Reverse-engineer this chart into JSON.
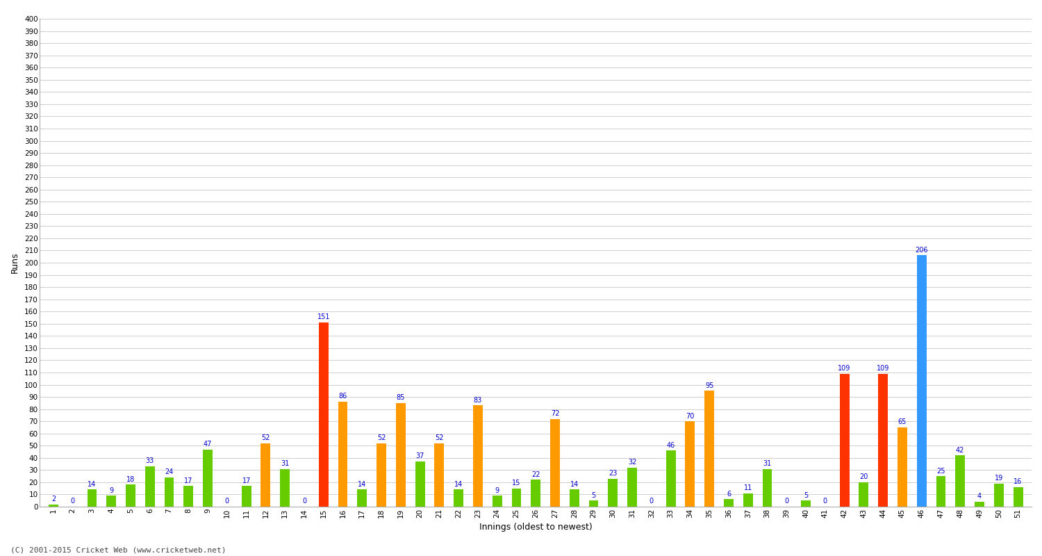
{
  "xlabel": "Innings (oldest to newest)",
  "ylabel": "Runs",
  "ylim": [
    0,
    400
  ],
  "yticks": [
    0,
    10,
    20,
    30,
    40,
    50,
    60,
    70,
    80,
    90,
    100,
    110,
    120,
    130,
    140,
    150,
    160,
    170,
    180,
    190,
    200,
    210,
    220,
    230,
    240,
    250,
    260,
    270,
    280,
    290,
    300,
    310,
    320,
    330,
    340,
    350,
    360,
    370,
    380,
    390,
    400
  ],
  "innings": [
    1,
    2,
    3,
    4,
    5,
    6,
    7,
    8,
    9,
    10,
    11,
    12,
    13,
    14,
    15,
    16,
    17,
    18,
    19,
    20,
    21,
    22,
    23,
    24,
    25,
    26,
    27,
    28,
    29,
    30,
    31,
    32,
    33,
    34,
    35,
    36,
    37,
    38,
    39,
    40,
    41,
    42,
    43,
    44,
    45,
    46,
    47,
    48,
    49,
    50,
    51
  ],
  "scores": [
    2,
    0,
    14,
    9,
    18,
    33,
    24,
    17,
    47,
    0,
    17,
    52,
    31,
    0,
    151,
    86,
    14,
    52,
    85,
    37,
    52,
    14,
    83,
    9,
    15,
    22,
    72,
    14,
    5,
    23,
    32,
    0,
    46,
    70,
    95,
    6,
    11,
    31,
    0,
    5,
    0,
    109,
    20,
    109,
    65,
    206,
    25,
    42,
    4,
    19,
    16
  ],
  "colors": [
    "#66cc00",
    "#66cc00",
    "#66cc00",
    "#66cc00",
    "#66cc00",
    "#66cc00",
    "#66cc00",
    "#66cc00",
    "#66cc00",
    "#66cc00",
    "#66cc00",
    "#ff9900",
    "#66cc00",
    "#66cc00",
    "#ff3300",
    "#ff9900",
    "#66cc00",
    "#ff9900",
    "#ff9900",
    "#66cc00",
    "#ff9900",
    "#66cc00",
    "#ff9900",
    "#66cc00",
    "#66cc00",
    "#66cc00",
    "#ff9900",
    "#66cc00",
    "#66cc00",
    "#66cc00",
    "#66cc00",
    "#66cc00",
    "#66cc00",
    "#ff9900",
    "#ff9900",
    "#66cc00",
    "#66cc00",
    "#66cc00",
    "#66cc00",
    "#66cc00",
    "#66cc00",
    "#ff3300",
    "#66cc00",
    "#ff3300",
    "#ff9900",
    "#3399ff",
    "#66cc00",
    "#66cc00",
    "#66cc00",
    "#66cc00",
    "#66cc00"
  ],
  "background_color": "#ffffff",
  "grid_color": "#bbbbbb",
  "footer": "(C) 2001-2015 Cricket Web (www.cricketweb.net)",
  "label_fontsize": 7,
  "label_color": "#0000cc",
  "bar_width": 0.5,
  "figsize": [
    15.0,
    8.0
  ],
  "dpi": 100
}
